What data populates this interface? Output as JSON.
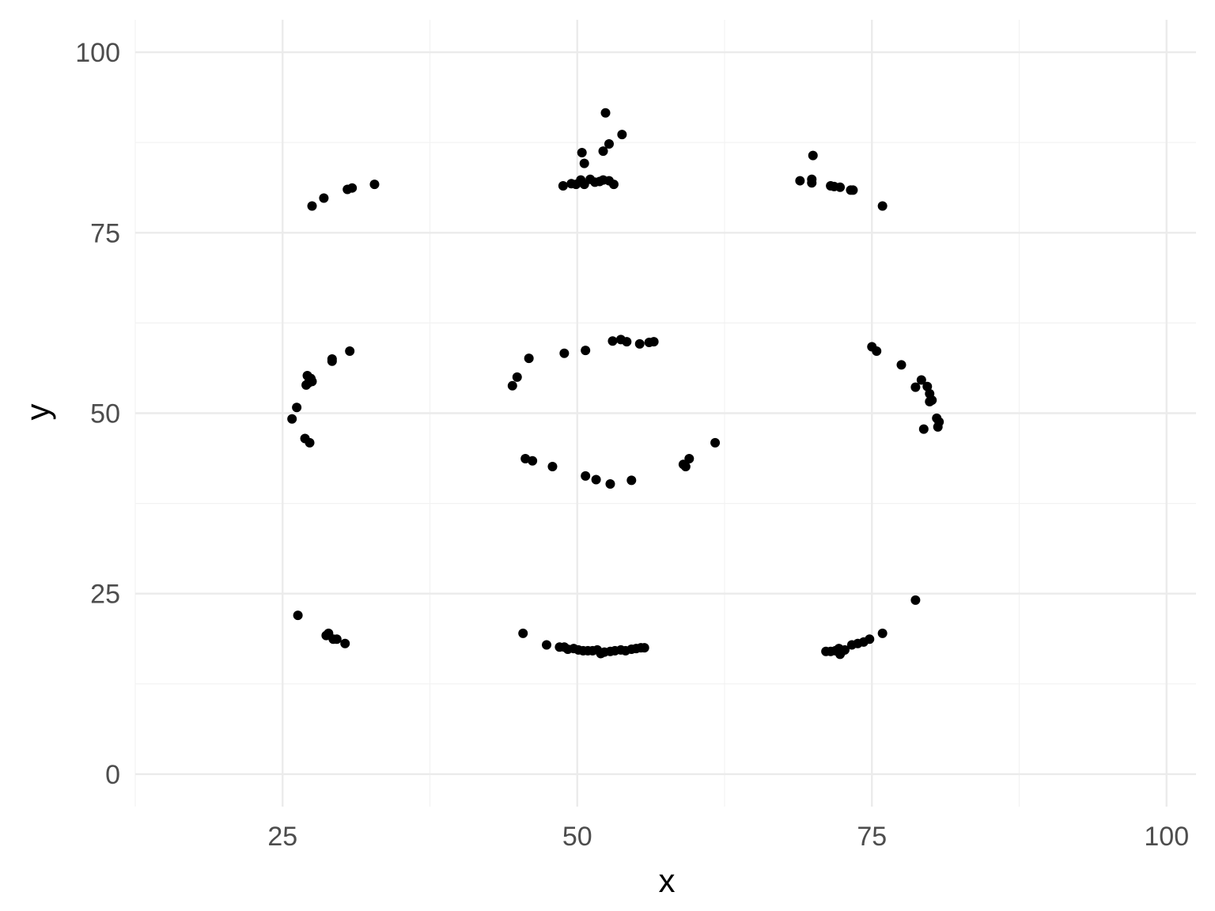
{
  "chart_data": {
    "type": "scatter",
    "xlabel": "x",
    "ylabel": "y",
    "xlim": [
      12.5,
      102.5
    ],
    "ylim": [
      -4.5,
      104.5
    ],
    "x_major_ticks": [
      25,
      50,
      75,
      100
    ],
    "x_minor_ticks": [
      12.5,
      37.5,
      62.5,
      87.5
    ],
    "y_major_ticks": [
      0,
      25,
      50,
      75,
      100
    ],
    "y_minor_ticks": [
      12.5,
      37.5,
      62.5,
      87.5
    ],
    "x_tick_labels": [
      "25",
      "50",
      "75",
      "100"
    ],
    "y_tick_labels": [
      "0",
      "25",
      "50",
      "75",
      "100"
    ],
    "grid": true,
    "colors": {
      "point": "#000000",
      "grid_major": "#ebebeb",
      "grid_minor": "#f2f2f2",
      "tick_text": "#4d4d4d",
      "background": "#ffffff"
    },
    "points": [
      [
        27.5,
        78.7
      ],
      [
        28.5,
        79.8
      ],
      [
        30.5,
        81.0
      ],
      [
        30.9,
        81.2
      ],
      [
        32.8,
        81.7
      ],
      [
        48.8,
        81.5
      ],
      [
        49.5,
        81.8
      ],
      [
        49.9,
        81.7
      ],
      [
        50.3,
        82.3
      ],
      [
        50.6,
        81.7
      ],
      [
        51.1,
        82.4
      ],
      [
        51.5,
        82.0
      ],
      [
        51.9,
        82.1
      ],
      [
        52.2,
        82.3
      ],
      [
        52.7,
        82.2
      ],
      [
        53.1,
        81.7
      ],
      [
        50.4,
        86.1
      ],
      [
        50.6,
        84.6
      ],
      [
        52.2,
        86.3
      ],
      [
        52.7,
        87.3
      ],
      [
        53.8,
        88.6
      ],
      [
        52.4,
        91.6
      ],
      [
        68.9,
        82.2
      ],
      [
        69.9,
        82.4
      ],
      [
        69.9,
        81.9
      ],
      [
        70.0,
        85.7
      ],
      [
        71.5,
        81.5
      ],
      [
        71.8,
        81.4
      ],
      [
        72.3,
        81.3
      ],
      [
        73.2,
        80.9
      ],
      [
        73.4,
        80.9
      ],
      [
        75.9,
        78.7
      ],
      [
        27.1,
        55.2
      ],
      [
        27.4,
        54.8
      ],
      [
        27.2,
        54.2
      ],
      [
        27.0,
        53.9
      ],
      [
        27.5,
        54.4
      ],
      [
        26.2,
        50.8
      ],
      [
        25.8,
        49.2
      ],
      [
        26.9,
        46.5
      ],
      [
        27.3,
        45.9
      ],
      [
        29.2,
        57.2
      ],
      [
        29.2,
        57.5
      ],
      [
        30.7,
        58.6
      ],
      [
        44.5,
        53.8
      ],
      [
        44.9,
        55.0
      ],
      [
        45.9,
        57.6
      ],
      [
        48.9,
        58.3
      ],
      [
        50.7,
        58.7
      ],
      [
        53.0,
        60.0
      ],
      [
        53.7,
        60.2
      ],
      [
        54.2,
        59.9
      ],
      [
        55.3,
        59.6
      ],
      [
        56.1,
        59.8
      ],
      [
        56.5,
        59.9
      ],
      [
        45.6,
        43.7
      ],
      [
        46.2,
        43.4
      ],
      [
        47.9,
        42.6
      ],
      [
        50.7,
        41.3
      ],
      [
        51.6,
        40.8
      ],
      [
        52.8,
        40.2
      ],
      [
        54.6,
        40.7
      ],
      [
        59.0,
        42.9
      ],
      [
        59.2,
        42.6
      ],
      [
        59.5,
        43.7
      ],
      [
        61.7,
        45.9
      ],
      [
        75.0,
        59.2
      ],
      [
        75.4,
        58.6
      ],
      [
        77.5,
        56.7
      ],
      [
        78.7,
        53.6
      ],
      [
        79.2,
        54.6
      ],
      [
        79.7,
        53.7
      ],
      [
        79.9,
        52.7
      ],
      [
        80.1,
        51.8
      ],
      [
        79.9,
        51.6
      ],
      [
        80.5,
        49.3
      ],
      [
        80.7,
        48.8
      ],
      [
        80.6,
        48.1
      ],
      [
        79.4,
        47.8
      ],
      [
        26.3,
        22.0
      ],
      [
        28.7,
        19.2
      ],
      [
        28.9,
        19.5
      ],
      [
        29.3,
        18.7
      ],
      [
        29.6,
        18.7
      ],
      [
        30.3,
        18.1
      ],
      [
        45.4,
        19.5
      ],
      [
        47.4,
        17.9
      ],
      [
        48.5,
        17.6
      ],
      [
        48.9,
        17.6
      ],
      [
        49.2,
        17.3
      ],
      [
        49.7,
        17.4
      ],
      [
        50.1,
        17.2
      ],
      [
        50.5,
        17.1
      ],
      [
        50.9,
        17.1
      ],
      [
        51.3,
        17.1
      ],
      [
        51.7,
        17.2
      ],
      [
        52.0,
        16.7
      ],
      [
        52.3,
        16.9
      ],
      [
        52.8,
        17.0
      ],
      [
        53.2,
        17.1
      ],
      [
        53.7,
        17.2
      ],
      [
        54.1,
        17.1
      ],
      [
        54.6,
        17.3
      ],
      [
        55.0,
        17.4
      ],
      [
        55.4,
        17.5
      ],
      [
        55.7,
        17.5
      ],
      [
        71.1,
        17.0
      ],
      [
        71.5,
        17.0
      ],
      [
        71.9,
        17.1
      ],
      [
        72.2,
        17.4
      ],
      [
        72.4,
        16.9
      ],
      [
        72.7,
        17.2
      ],
      [
        72.3,
        16.6
      ],
      [
        73.3,
        17.9
      ],
      [
        73.8,
        18.1
      ],
      [
        74.3,
        18.3
      ],
      [
        74.8,
        18.7
      ],
      [
        75.9,
        19.5
      ],
      [
        78.7,
        24.1
      ]
    ]
  }
}
